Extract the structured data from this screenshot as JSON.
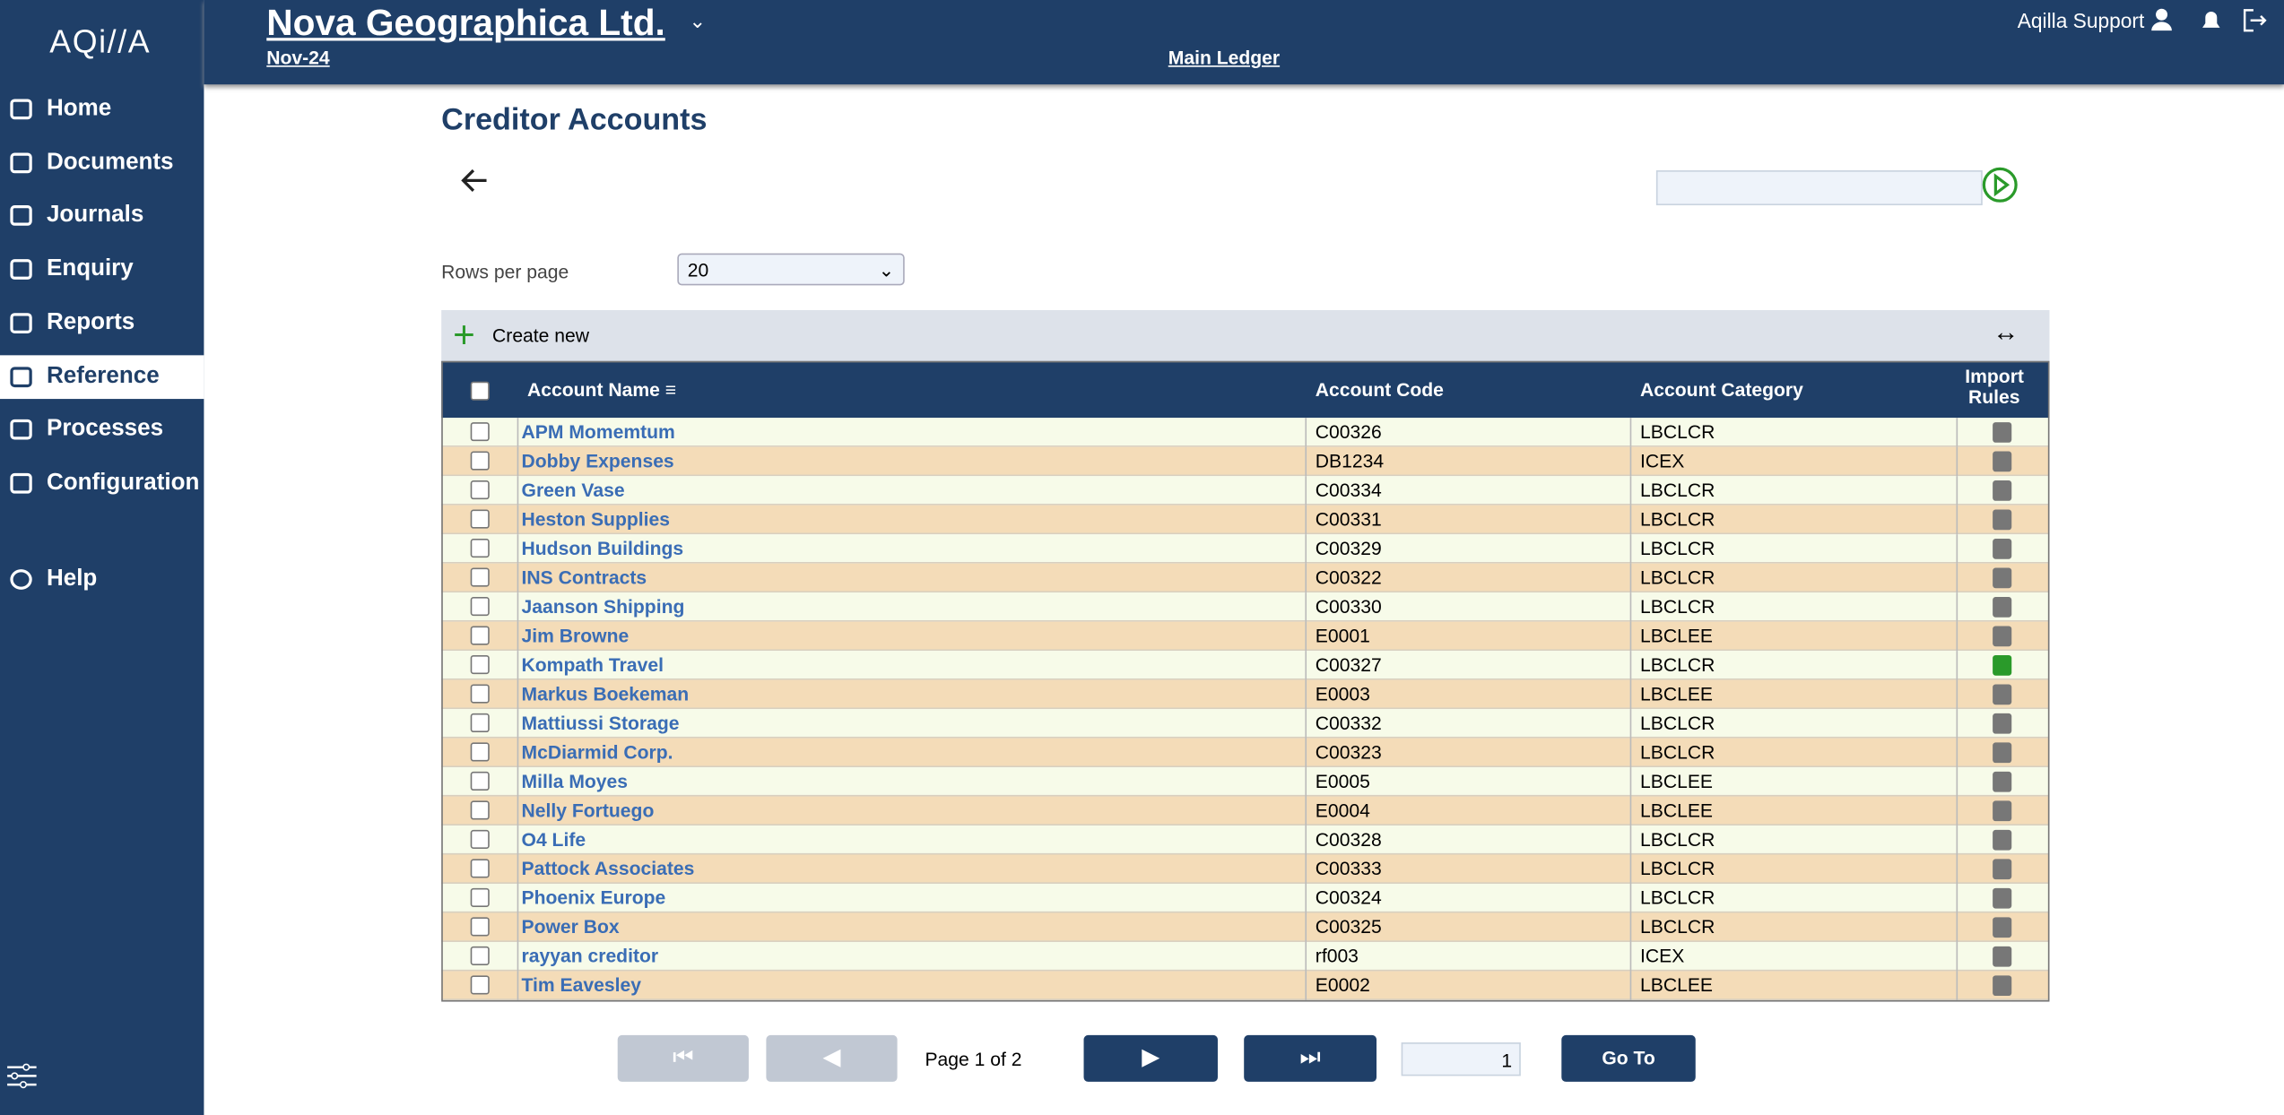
{
  "header": {
    "logo": "AQi//A",
    "company": "Nova Geographica Ltd.",
    "period": "Nov-24",
    "ledger": "Main Ledger",
    "user": "Aqilla Support"
  },
  "nav": {
    "items": [
      "Home",
      "Documents",
      "Journals",
      "Enquiry",
      "Reports",
      "Reference",
      "Processes",
      "Configuration"
    ],
    "active": "Reference",
    "help": "Help"
  },
  "page": {
    "title": "Creditor Accounts",
    "rows_per_page_label": "Rows per page",
    "rows_per_page": "20",
    "create_new": "Create new"
  },
  "table": {
    "columns": [
      "Account Name",
      "Account Code",
      "Account Category",
      "Import Rules"
    ],
    "rows": [
      {
        "name": "APM Momemtum",
        "code": "C00326",
        "category": "LBCLCR",
        "has_rules": false
      },
      {
        "name": "Dobby Expenses",
        "code": "DB1234",
        "category": "ICEX",
        "has_rules": false
      },
      {
        "name": "Green Vase",
        "code": "C00334",
        "category": "LBCLCR",
        "has_rules": false
      },
      {
        "name": "Heston Supplies",
        "code": "C00331",
        "category": "LBCLCR",
        "has_rules": false
      },
      {
        "name": "Hudson Buildings",
        "code": "C00329",
        "category": "LBCLCR",
        "has_rules": false
      },
      {
        "name": "INS Contracts",
        "code": "C00322",
        "category": "LBCLCR",
        "has_rules": false
      },
      {
        "name": "Jaanson Shipping",
        "code": "C00330",
        "category": "LBCLCR",
        "has_rules": false
      },
      {
        "name": "Jim Browne",
        "code": "E0001",
        "category": "LBCLEE",
        "has_rules": false
      },
      {
        "name": "Kompath Travel",
        "code": "C00327",
        "category": "LBCLCR",
        "has_rules": true
      },
      {
        "name": "Markus Boekeman",
        "code": "E0003",
        "category": "LBCLEE",
        "has_rules": false
      },
      {
        "name": "Mattiussi Storage",
        "code": "C00332",
        "category": "LBCLCR",
        "has_rules": false
      },
      {
        "name": "McDiarmid Corp.",
        "code": "C00323",
        "category": "LBCLCR",
        "has_rules": false
      },
      {
        "name": "Milla Moyes",
        "code": "E0005",
        "category": "LBCLEE",
        "has_rules": false
      },
      {
        "name": "Nelly Fortuego",
        "code": "E0004",
        "category": "LBCLEE",
        "has_rules": false
      },
      {
        "name": "O4 Life",
        "code": "C00328",
        "category": "LBCLCR",
        "has_rules": false
      },
      {
        "name": "Pattock Associates",
        "code": "C00333",
        "category": "LBCLCR",
        "has_rules": false
      },
      {
        "name": "Phoenix Europe",
        "code": "C00324",
        "category": "LBCLCR",
        "has_rules": false
      },
      {
        "name": "Power Box",
        "code": "C00325",
        "category": "LBCLCR",
        "has_rules": false
      },
      {
        "name": "rayyan creditor",
        "code": "rf003",
        "category": "ICEX",
        "has_rules": false
      },
      {
        "name": "Tim Eavesley",
        "code": "E0002",
        "category": "LBCLEE",
        "has_rules": false
      }
    ]
  },
  "pagination": {
    "status": "Page 1 of 2",
    "page_input": "1",
    "goto": "Go To"
  }
}
